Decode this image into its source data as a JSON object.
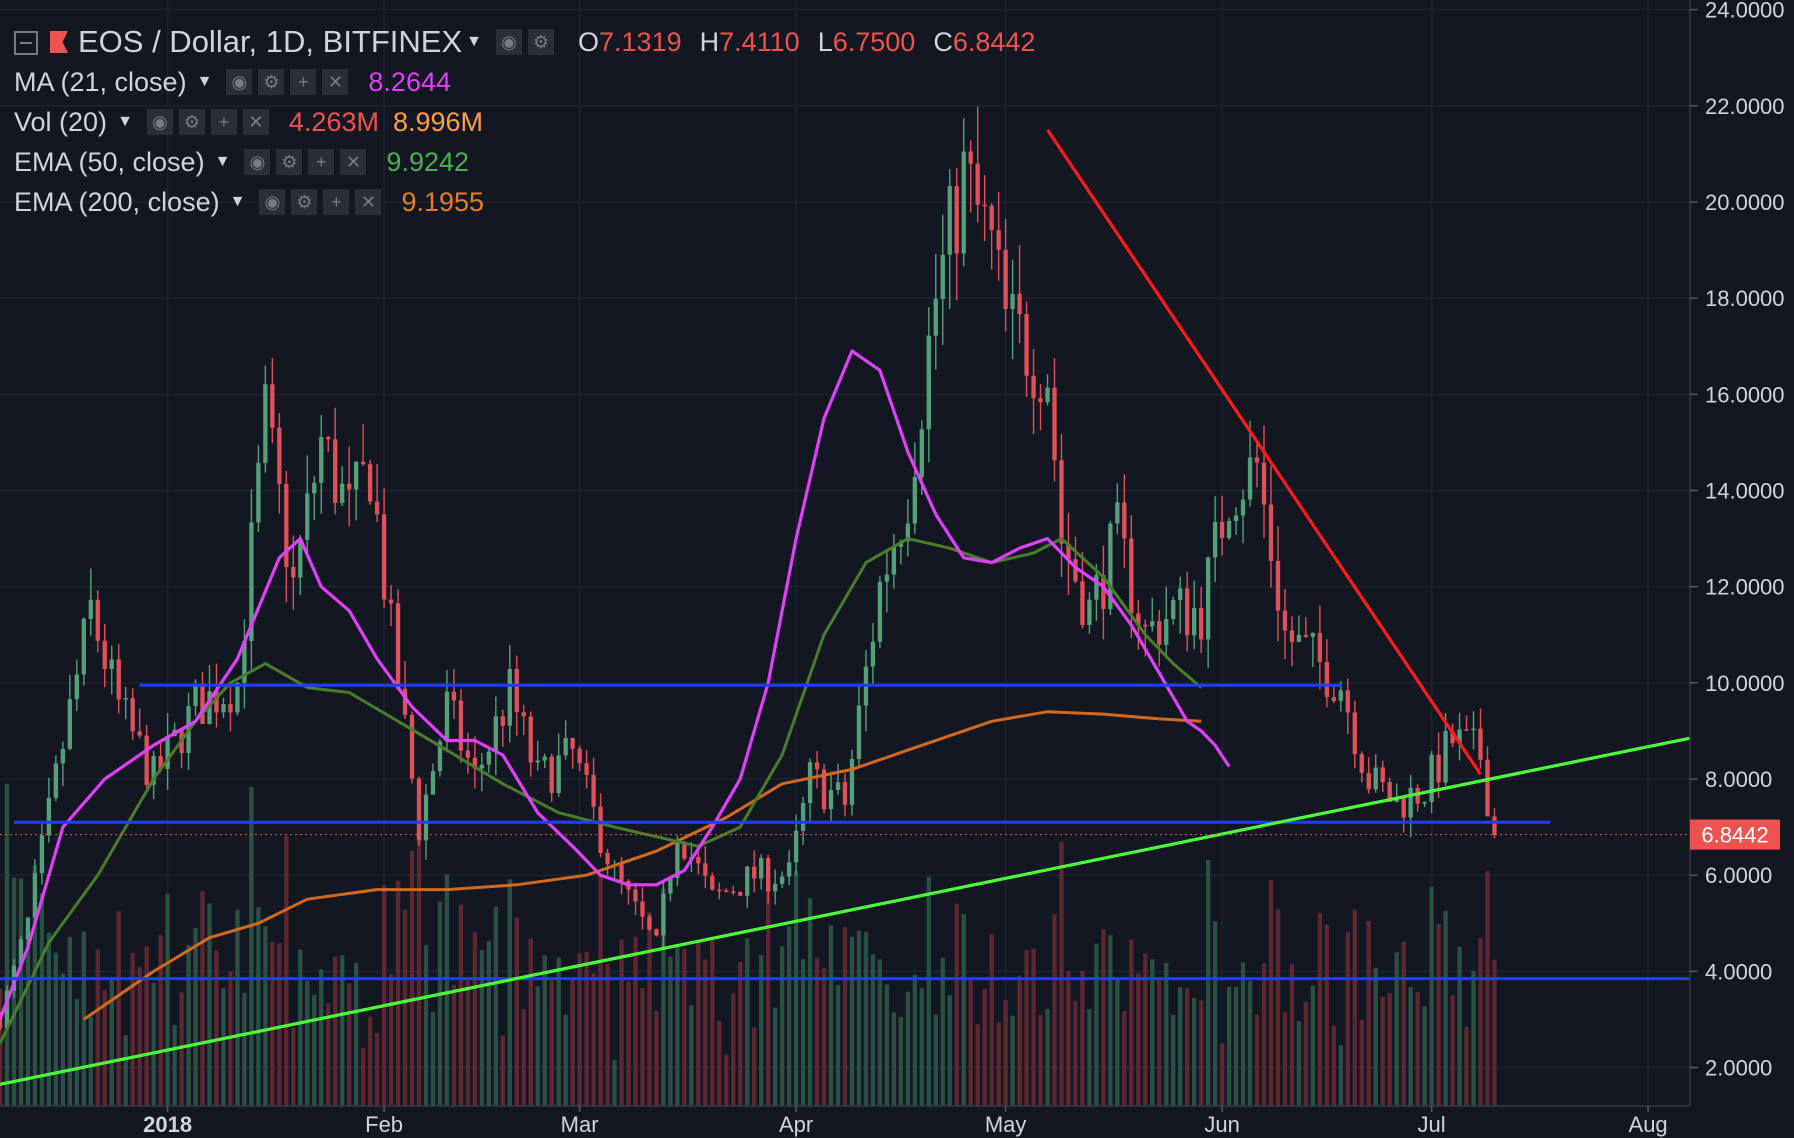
{
  "header": {
    "symbol_title": "EOS / Dollar, 1D, BITFINEX",
    "ohlc": [
      {
        "k": "O",
        "v": "7.1319"
      },
      {
        "k": "H",
        "v": "7.4110"
      },
      {
        "k": "L",
        "v": "6.7500"
      },
      {
        "k": "C",
        "v": "6.8442"
      }
    ]
  },
  "indicators": [
    {
      "label": "MA (21, close)",
      "values": [
        "8.2644"
      ],
      "colors": [
        "#e040fb"
      ]
    },
    {
      "label": "Vol (20)",
      "values": [
        "4.263M",
        "8.996M"
      ],
      "colors": [
        "#ef5350",
        "#ff9f43"
      ]
    },
    {
      "label": "EMA (50, close)",
      "values": [
        "9.9242"
      ],
      "colors": [
        "#4caf50"
      ]
    },
    {
      "label": "EMA (200, close)",
      "values": [
        "9.1955"
      ],
      "colors": [
        "#e67e22"
      ]
    }
  ],
  "colors": {
    "up": "#53a07a",
    "down": "#e0505a",
    "ma21": "#e040fb",
    "ema50": "#4a7d2a",
    "ema200": "#d2691e",
    "support": "#1e3fff",
    "trend_up": "#4cff3a",
    "trend_down": "#ff1a1a",
    "vol_up": "#2e5a48",
    "vol_down": "#6b2a35"
  },
  "chart_data": {
    "type": "candlestick",
    "y_axis": {
      "min": 1.2,
      "max": 24.2,
      "ticks": [
        "24.0000",
        "22.0000",
        "20.0000",
        "18.0000",
        "16.0000",
        "14.0000",
        "12.0000",
        "10.0000",
        "8.0000",
        "6.0000",
        "4.0000",
        "2.0000"
      ]
    },
    "x_axis": {
      "ticks": [
        {
          "label": "2018",
          "day": 2
        },
        {
          "label": "Feb",
          "day": 33
        },
        {
          "label": "Mar",
          "day": 61
        },
        {
          "label": "Apr",
          "day": 92
        },
        {
          "label": "May",
          "day": 122
        },
        {
          "label": "Jun",
          "day": 153
        },
        {
          "label": "Jul",
          "day": 183
        },
        {
          "label": "Aug",
          "day": 214
        }
      ],
      "start_day": -22,
      "end_day": 220
    },
    "last_price": {
      "label": "6.8442",
      "value": 6.8442
    },
    "key_closes": [
      [
        -22,
        3
      ],
      [
        -18,
        5
      ],
      [
        -14,
        8
      ],
      [
        -9,
        11.5
      ],
      [
        -5,
        9.5
      ],
      [
        0,
        8
      ],
      [
        6,
        9.5
      ],
      [
        12,
        10
      ],
      [
        16,
        15.5
      ],
      [
        20,
        12
      ],
      [
        24,
        15
      ],
      [
        28,
        13.5
      ],
      [
        31,
        14.5
      ],
      [
        34,
        11
      ],
      [
        38,
        7
      ],
      [
        42,
        9.5
      ],
      [
        46,
        8
      ],
      [
        51,
        9.8
      ],
      [
        55,
        8
      ],
      [
        60,
        8.5
      ],
      [
        66,
        6
      ],
      [
        70,
        5
      ],
      [
        72,
        4.5
      ],
      [
        75,
        7
      ],
      [
        80,
        5.5
      ],
      [
        86,
        6
      ],
      [
        91,
        6
      ],
      [
        94,
        8
      ],
      [
        99,
        7.5
      ],
      [
        104,
        12
      ],
      [
        108,
        14
      ],
      [
        112,
        18
      ],
      [
        116,
        20.5
      ],
      [
        120,
        19
      ],
      [
        122,
        17.5
      ],
      [
        128,
        16.5
      ],
      [
        130,
        13
      ],
      [
        134,
        11.5
      ],
      [
        138,
        13
      ],
      [
        142,
        11
      ],
      [
        146,
        11.5
      ],
      [
        150,
        11.5
      ],
      [
        154,
        14
      ],
      [
        158,
        14.5
      ],
      [
        162,
        11
      ],
      [
        166,
        10.5
      ],
      [
        170,
        10
      ],
      [
        174,
        8
      ],
      [
        178,
        7.5
      ],
      [
        182,
        7.8
      ],
      [
        186,
        8.8
      ],
      [
        190,
        8.5
      ],
      [
        192,
        6.84
      ]
    ],
    "ma21": [
      [
        -22,
        3
      ],
      [
        -18,
        4.5
      ],
      [
        -13,
        7
      ],
      [
        -7,
        8
      ],
      [
        0,
        8.7
      ],
      [
        6,
        9.2
      ],
      [
        12,
        10.5
      ],
      [
        18,
        12.6
      ],
      [
        21,
        13
      ],
      [
        24,
        12
      ],
      [
        28,
        11.5
      ],
      [
        32,
        10.5
      ],
      [
        37,
        9.5
      ],
      [
        42,
        8.8
      ],
      [
        46,
        8.8
      ],
      [
        50,
        8.5
      ],
      [
        55,
        7.3
      ],
      [
        60,
        6.6
      ],
      [
        64,
        6
      ],
      [
        68,
        5.8
      ],
      [
        72,
        5.8
      ],
      [
        76,
        6.1
      ],
      [
        80,
        7
      ],
      [
        84,
        8
      ],
      [
        88,
        10
      ],
      [
        92,
        13
      ],
      [
        96,
        15.5
      ],
      [
        100,
        16.9
      ],
      [
        104,
        16.5
      ],
      [
        108,
        14.8
      ],
      [
        112,
        13.5
      ],
      [
        116,
        12.6
      ],
      [
        120,
        12.5
      ],
      [
        124,
        12.8
      ],
      [
        128,
        13
      ],
      [
        132,
        12.4
      ],
      [
        136,
        12
      ],
      [
        140,
        11.2
      ],
      [
        144,
        10.2
      ],
      [
        148,
        9.2
      ],
      [
        150,
        9
      ],
      [
        152,
        8.7
      ],
      [
        154,
        8.26
      ]
    ],
    "ema50": [
      [
        -22,
        2.5
      ],
      [
        -15,
        4.6
      ],
      [
        -8,
        6
      ],
      [
        0,
        8
      ],
      [
        6,
        9.2
      ],
      [
        11,
        10
      ],
      [
        16,
        10.4
      ],
      [
        22,
        9.9
      ],
      [
        28,
        9.8
      ],
      [
        35,
        9.2
      ],
      [
        42,
        8.6
      ],
      [
        50,
        7.9
      ],
      [
        58,
        7.3
      ],
      [
        66,
        7
      ],
      [
        72,
        6.8
      ],
      [
        78,
        6.6
      ],
      [
        84,
        7
      ],
      [
        90,
        8.5
      ],
      [
        96,
        11
      ],
      [
        102,
        12.5
      ],
      [
        108,
        13
      ],
      [
        114,
        12.8
      ],
      [
        120,
        12.5
      ],
      [
        126,
        12.7
      ],
      [
        130,
        13
      ],
      [
        136,
        12.2
      ],
      [
        142,
        11
      ],
      [
        146,
        10.4
      ],
      [
        150,
        9.9
      ]
    ],
    "ema200": [
      [
        -10,
        3
      ],
      [
        0,
        4
      ],
      [
        8,
        4.7
      ],
      [
        15,
        5
      ],
      [
        22,
        5.5
      ],
      [
        32,
        5.7
      ],
      [
        42,
        5.7
      ],
      [
        52,
        5.8
      ],
      [
        62,
        6
      ],
      [
        72,
        6.5
      ],
      [
        82,
        7.2
      ],
      [
        90,
        7.9
      ],
      [
        100,
        8.2
      ],
      [
        110,
        8.7
      ],
      [
        120,
        9.2
      ],
      [
        128,
        9.4
      ],
      [
        136,
        9.35
      ],
      [
        144,
        9.25
      ],
      [
        150,
        9.2
      ]
    ],
    "hlines": [
      {
        "y": 9.95,
        "from": -2,
        "to": 170
      },
      {
        "y": 7.1,
        "from": -20,
        "to": 200
      },
      {
        "y": 3.85,
        "from": -22,
        "to": 220
      }
    ],
    "trend_up": [
      [
        -22,
        1.65
      ],
      [
        220,
        8.85
      ]
    ],
    "trend_down": [
      [
        128,
        21.5
      ],
      [
        190,
        8.1
      ]
    ]
  }
}
